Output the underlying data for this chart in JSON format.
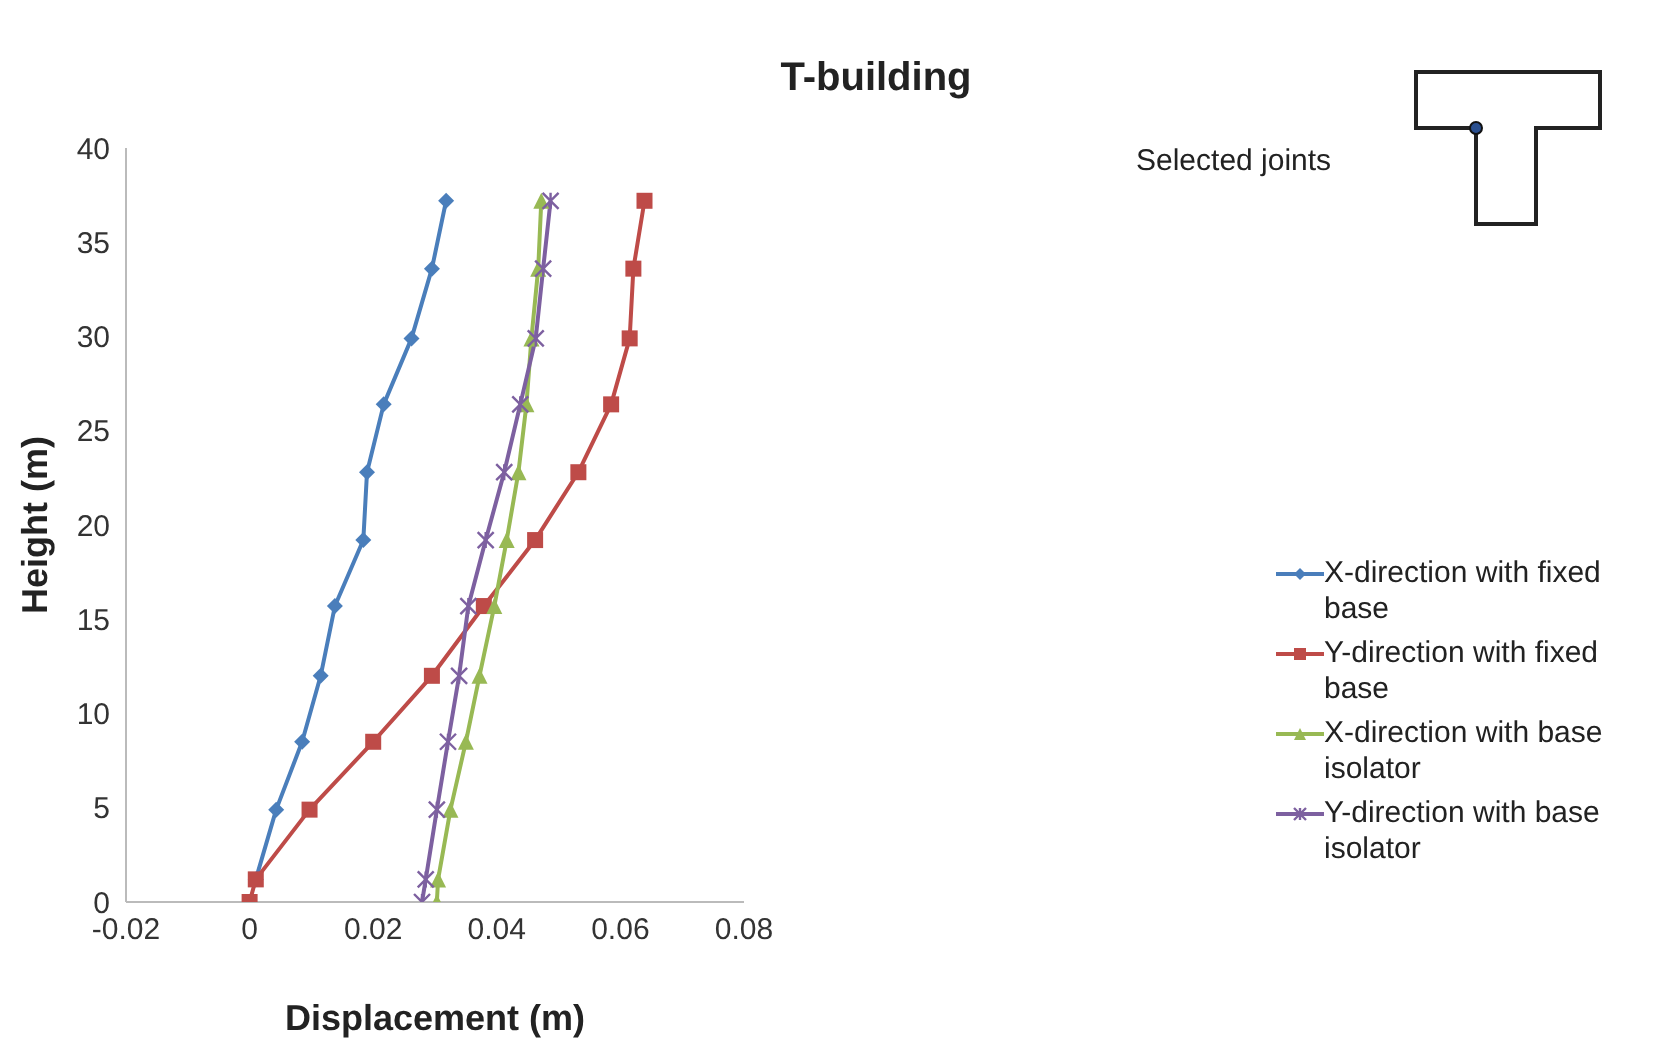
{
  "chart_data": {
    "type": "line",
    "title": "T-building",
    "xlabel": "Displacement (m)",
    "ylabel": "Height (m)",
    "xlim": [
      -0.02,
      0.08
    ],
    "xticks": [
      -0.02,
      0,
      0.02,
      0.04,
      0.06,
      0.08
    ],
    "ylim": [
      0,
      40
    ],
    "yticks": [
      0,
      5,
      10,
      15,
      20,
      25,
      30,
      35,
      40
    ],
    "grid": false,
    "legend": "right",
    "annotations": [
      "Selected joints"
    ],
    "series": [
      {
        "name": "X-direction with fixed base",
        "color": "#4a7ebb",
        "marker": "diamond",
        "x": [
          0.001,
          0.0043,
          0.0085,
          0.0115,
          0.0138,
          0.0184,
          0.019,
          0.0217,
          0.0262,
          0.0295,
          0.0318
        ],
        "values": [
          1.2,
          4.9,
          8.5,
          12,
          15.7,
          19.2,
          22.8,
          26.4,
          29.9,
          33.6,
          37.2
        ]
      },
      {
        "name": "Y-direction with fixed base",
        "color": "#be4b48",
        "marker": "square",
        "x": [
          0,
          0.001,
          0.0097,
          0.02,
          0.0295,
          0.0379,
          0.0462,
          0.0532,
          0.0585,
          0.0615,
          0.0621,
          0.0639
        ],
        "values": [
          0,
          1.2,
          4.9,
          8.5,
          12,
          15.7,
          19.2,
          22.8,
          26.4,
          29.9,
          33.6,
          37.2
        ]
      },
      {
        "name": "X-direction with base isolator",
        "color": "#98b954",
        "marker": "triangle",
        "x": [
          0.0303,
          0.0305,
          0.0325,
          0.035,
          0.0372,
          0.0396,
          0.0416,
          0.0435,
          0.0448,
          0.0456,
          0.0467,
          0.0472
        ],
        "values": [
          0,
          1.2,
          4.9,
          8.5,
          12,
          15.7,
          19.2,
          22.8,
          26.4,
          29.9,
          33.6,
          37.2
        ]
      },
      {
        "name": "Y-direction with base isolator",
        "color": "#7d60a0",
        "marker": "cross",
        "x": [
          0.0279,
          0.0285,
          0.0303,
          0.0321,
          0.0339,
          0.0354,
          0.0382,
          0.0412,
          0.0438,
          0.0463,
          0.0475,
          0.0487
        ],
        "values": [
          0,
          1.2,
          4.9,
          8.5,
          12,
          15.7,
          19.2,
          22.8,
          26.4,
          29.9,
          33.6,
          37.2
        ]
      }
    ]
  }
}
